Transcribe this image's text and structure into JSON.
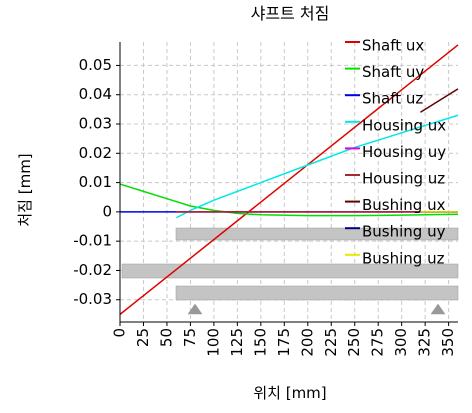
{
  "chart_data": {
    "type": "line",
    "title": "샤프트 처짐",
    "x_label": "위치 [mm]",
    "y_label": "처짐 [mm]",
    "xlim": [
      0,
      360
    ],
    "ylim": [
      -0.0376,
      0.058
    ],
    "xticks": [
      0,
      25,
      50,
      75,
      100,
      125,
      150,
      175,
      200,
      225,
      250,
      275,
      300,
      325,
      350
    ],
    "yticks": [
      -0.03,
      -0.02,
      -0.01,
      0,
      0.01,
      0.02,
      0.03,
      0.04,
      0.05
    ],
    "grid": true,
    "legend": "upper right",
    "series": [
      {
        "name": "Shaft ux",
        "color": "#e00000",
        "x": [
          0,
          360
        ],
        "values": [
          -0.035,
          0.057
        ]
      },
      {
        "name": "Shaft uy",
        "color": "#00e000",
        "x": [
          0,
          25,
          50,
          75,
          100,
          125,
          150,
          200,
          250,
          300,
          360
        ],
        "values": [
          0.0095,
          0.007,
          0.0045,
          0.002,
          0.0005,
          -0.0005,
          -0.001,
          -0.0013,
          -0.0013,
          -0.0011,
          -0.0008
        ]
      },
      {
        "name": "Shaft uz",
        "color": "#0000e0",
        "x": [
          0,
          360
        ],
        "values": [
          0,
          0
        ]
      },
      {
        "name": "Housing ux",
        "color": "#00e8e8",
        "x": [
          60,
          75,
          100,
          150,
          200,
          250,
          300,
          360
        ],
        "values": [
          -0.002,
          0.0005,
          0.004,
          0.01,
          0.016,
          0.022,
          0.027,
          0.033
        ]
      },
      {
        "name": "Housing uy",
        "color": "#e000e0",
        "x": [
          60,
          360
        ],
        "values": [
          0,
          0
        ]
      },
      {
        "name": "Housing uz",
        "color": "#a52a2a",
        "x": [
          60,
          360
        ],
        "values": [
          0,
          0
        ]
      },
      {
        "name": "Bushing ux",
        "color": "#600000",
        "x": [
          320,
          360
        ],
        "values": [
          0.034,
          0.042
        ]
      },
      {
        "name": "Bushing uy",
        "color": "#000080",
        "x": [
          320,
          360
        ],
        "values": [
          0,
          0
        ]
      },
      {
        "name": "Bushing uz",
        "color": "#e8e800",
        "x": [
          320,
          360
        ],
        "values": [
          0,
          0
        ]
      }
    ]
  }
}
